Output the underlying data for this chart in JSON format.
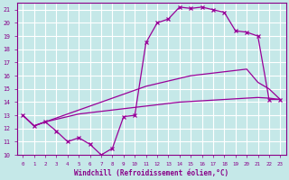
{
  "xlabel": "Windchill (Refroidissement éolien,°C)",
  "bg_color": "#c5e8e8",
  "grid_color": "#ffffff",
  "line_color": "#990099",
  "xlim": [
    -0.5,
    23.5
  ],
  "ylim": [
    10,
    21.5
  ],
  "yticks": [
    10,
    11,
    12,
    13,
    14,
    15,
    16,
    17,
    18,
    19,
    20,
    21
  ],
  "xticks": [
    0,
    1,
    2,
    3,
    4,
    5,
    6,
    7,
    8,
    9,
    10,
    11,
    12,
    13,
    14,
    15,
    16,
    17,
    18,
    19,
    20,
    21,
    22,
    23
  ],
  "series": [
    {
      "y": [
        13.0,
        12.2,
        12.5,
        12.7,
        12.9,
        13.1,
        13.2,
        13.3,
        13.4,
        13.5,
        13.6,
        13.7,
        13.8,
        13.9,
        14.0,
        14.05,
        14.1,
        14.15,
        14.2,
        14.25,
        14.3,
        14.35,
        14.3,
        14.2
      ],
      "marker": false
    },
    {
      "y": [
        13.0,
        12.2,
        12.5,
        12.8,
        13.1,
        13.4,
        13.7,
        14.0,
        14.3,
        14.6,
        14.9,
        15.2,
        15.4,
        15.6,
        15.8,
        16.0,
        16.1,
        16.2,
        16.3,
        16.4,
        16.5,
        15.5,
        15.0,
        14.2
      ],
      "marker": false
    },
    {
      "y": [
        13.0,
        12.2,
        12.5,
        11.8,
        11.0,
        11.3,
        10.8,
        10.0,
        10.5,
        12.9,
        13.0,
        18.5,
        20.0,
        20.3,
        21.2,
        21.1,
        21.2,
        21.0,
        20.8,
        19.4,
        19.3,
        19.0,
        14.2,
        14.2
      ],
      "marker": true
    }
  ]
}
